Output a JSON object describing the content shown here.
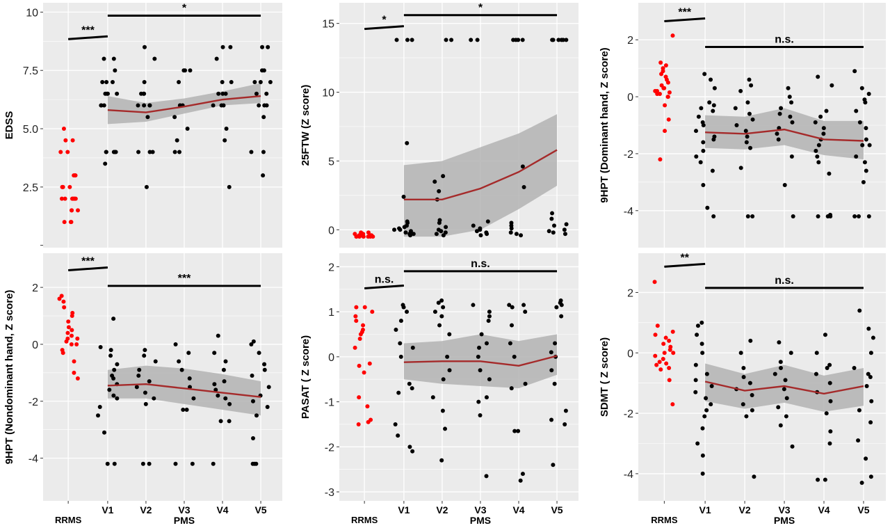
{
  "colors": {
    "panel_bg": "#ebebeb",
    "grid": "#ffffff",
    "rrms_points": "#ff0000",
    "pms_points": "#000000",
    "trend_line": "#a52a2a",
    "ribbon": "#b3b3b3",
    "bracket": "#000000"
  },
  "chart_data": [
    {
      "id": "edss",
      "type": "scatter",
      "ylabel": "EDSS",
      "xlabel": "PMS",
      "categories": [
        "RRMS",
        "V1",
        "V2",
        "V3",
        "V4",
        "V5"
      ],
      "yticks": [
        2.5,
        5.0,
        7.5,
        10
      ],
      "ytick_labels": [
        "2.5",
        "5.0",
        "7.5",
        "10"
      ],
      "extra_tick_marks": [
        0
      ],
      "ylim": [
        -0.1,
        10.4
      ],
      "trend": {
        "x": [
          "V1",
          "V2",
          "V3",
          "V4",
          "V5"
        ],
        "mean": [
          5.8,
          5.7,
          5.95,
          6.25,
          6.4
        ],
        "lower": [
          5.2,
          5.3,
          5.65,
          6.0,
          6.1
        ],
        "upper": [
          6.4,
          6.1,
          6.3,
          6.6,
          6.95
        ]
      },
      "brackets": [
        {
          "from": "RRMS",
          "to": "V1",
          "y": 8.9,
          "label": "***"
        },
        {
          "from": "V1",
          "to": "V5",
          "y": 9.85,
          "label": "*"
        }
      ],
      "points": {
        "RRMS": [
          1,
          1,
          1,
          1.5,
          1.5,
          1.5,
          2,
          2,
          2,
          2,
          2,
          2,
          2,
          2.5,
          2.5,
          2.5,
          2.5,
          3,
          3,
          3,
          4,
          4,
          4.5,
          4.5,
          5
        ],
        "V1": [
          3.5,
          4,
          4,
          4,
          4,
          4,
          6,
          6,
          6,
          6.5,
          6.5,
          6.5,
          6.5,
          7,
          7,
          7,
          7.5,
          8,
          8
        ],
        "V2": [
          2.5,
          4,
          4,
          4,
          5.5,
          6,
          6,
          6,
          6,
          6.5,
          6.5,
          6.5,
          7,
          8,
          8.5
        ],
        "V3": [
          4,
          4,
          4.5,
          5,
          5.5,
          6,
          6,
          6,
          7,
          7.5,
          7.5,
          7.5
        ],
        "V4": [
          2.5,
          4.5,
          5,
          6,
          6,
          6,
          6.5,
          6.5,
          6.5,
          7,
          7,
          8,
          8.5,
          8.5
        ],
        "V5": [
          3,
          4,
          4,
          5.5,
          6,
          6,
          6,
          6.5,
          6.5,
          7,
          7,
          7,
          7.5,
          7.5,
          8.5,
          8.5
        ]
      }
    },
    {
      "id": "25ftw",
      "type": "scatter",
      "ylabel": "25FTW (Z score)",
      "xlabel": "PMS",
      "categories": [
        "RRMS",
        "V1",
        "V2",
        "V3",
        "V4",
        "V5"
      ],
      "yticks": [
        0,
        5,
        10,
        15
      ],
      "ytick_labels": [
        "0",
        "5",
        "10",
        "15"
      ],
      "ylim": [
        -1.3,
        16.5
      ],
      "trend": {
        "x": [
          "V1",
          "V2",
          "V3",
          "V4",
          "V5"
        ],
        "mean": [
          2.2,
          2.2,
          3.0,
          4.2,
          5.8
        ],
        "lower": [
          -0.5,
          -0.5,
          0.0,
          1.5,
          3.2
        ],
        "upper": [
          4.7,
          5.0,
          6.0,
          7.0,
          8.4
        ]
      },
      "brackets": [
        {
          "from": "RRMS",
          "to": "V1",
          "y": 14.7,
          "label": "*"
        },
        {
          "from": "V1",
          "to": "V5",
          "y": 15.6,
          "label": "*"
        }
      ],
      "points": {
        "RRMS": [
          -0.5,
          -0.5,
          -0.5,
          -0.5,
          -0.5,
          -0.5,
          -0.5,
          -0.4,
          -0.4,
          -0.4,
          -0.4,
          -0.3,
          -0.3,
          -0.3,
          -0.2,
          -0.2
        ],
        "V1": [
          -0.4,
          -0.3,
          -0.3,
          -0.2,
          -0.1,
          0,
          0,
          0.1,
          0.2,
          0.3,
          0.5,
          0.6,
          2.4,
          6.3,
          13.8,
          13.8,
          13.8
        ],
        "V2": [
          -0.4,
          -0.3,
          -0.2,
          -0.1,
          0,
          0.2,
          0.5,
          0.7,
          2.2,
          2.8,
          3.5,
          3.9,
          13.8,
          13.8
        ],
        "V3": [
          -0.4,
          -0.3,
          -0.2,
          -0.1,
          0,
          0.1,
          0.3,
          0.6,
          13.8,
          13.8
        ],
        "V4": [
          -0.4,
          -0.3,
          -0.2,
          0.1,
          0.3,
          0.5,
          3.1,
          4.6,
          13.8,
          13.8,
          13.8,
          13.8
        ],
        "V5": [
          -0.3,
          -0.2,
          -0.1,
          0,
          0.3,
          0.4,
          0.8,
          1.2,
          13.8,
          13.8,
          13.8,
          13.8,
          13.8,
          13.8
        ]
      }
    },
    {
      "id": "9hpt-dominant",
      "type": "scatter",
      "ylabel": "9HPT (Dominant hand, Z score)",
      "xlabel": "PMS",
      "categories": [
        "RRMS",
        "V1",
        "V2",
        "V3",
        "V4",
        "V5"
      ],
      "yticks": [
        -4,
        -2,
        0,
        2
      ],
      "ytick_labels": [
        "-4",
        "-2",
        "0",
        "2"
      ],
      "ylim": [
        -5.3,
        3.3
      ],
      "trend": {
        "x": [
          "V1",
          "V2",
          "V3",
          "V4",
          "V5"
        ],
        "mean": [
          -1.25,
          -1.3,
          -1.15,
          -1.5,
          -1.55
        ],
        "lower": [
          -1.8,
          -1.85,
          -1.7,
          -2.05,
          -2.2
        ],
        "upper": [
          -0.65,
          -0.7,
          -0.4,
          -0.85,
          -0.85
        ]
      },
      "brackets": [
        {
          "from": "RRMS",
          "to": "V1",
          "y": 2.7,
          "label": "***"
        },
        {
          "from": "V1",
          "to": "V5",
          "y": 1.75,
          "label": "n.s."
        }
      ],
      "points": {
        "RRMS": [
          -2.2,
          -1.2,
          -0.8,
          -0.3,
          0,
          0,
          0.1,
          0.1,
          0.15,
          0.2,
          0.2,
          0.3,
          0.3,
          0.4,
          0.5,
          0.6,
          0.7,
          0.8,
          0.9,
          1.0,
          1.1,
          1.2,
          2.15
        ],
        "V1": [
          -4.2,
          -3.9,
          -3.1,
          -2.6,
          -2.3,
          -2.1,
          -1.9,
          -1.6,
          -1.5,
          -1.4,
          -1.2,
          -1.0,
          -0.9,
          -0.7,
          -0.5,
          -0.4,
          -0.3,
          -0.2,
          0.3,
          0.6,
          0.8
        ],
        "V2": [
          -4.2,
          -4.2,
          -2.5,
          -1.8,
          -1.6,
          -1.4,
          -1.2,
          -1.0,
          -0.8,
          -0.6,
          -0.4,
          -0.2,
          0.2,
          0.4,
          0.6
        ],
        "V3": [
          -4.2,
          -3.1,
          -2.1,
          -1.5,
          -1.3,
          -1.1,
          -0.9,
          -0.7,
          -0.6,
          -0.4,
          -0.2,
          0.0,
          0.3
        ],
        "V4": [
          -4.2,
          -4.2,
          -4.2,
          -4.15,
          -2.7,
          -2.3,
          -2.1,
          -1.9,
          -1.7,
          -1.5,
          -1.3,
          -1.1,
          -0.9,
          -0.7,
          -0.5,
          0.4,
          0.7
        ],
        "V5": [
          -4.2,
          -4.2,
          -4.2,
          -3.0,
          -2.6,
          -2.3,
          -2.1,
          -1.7,
          -1.7,
          -1.5,
          -1.1,
          -0.9,
          -0.5,
          -0.2,
          -0.1,
          0.1,
          0.3,
          0.9
        ]
      }
    },
    {
      "id": "9hpt-nondominant",
      "type": "scatter",
      "ylabel": "9HPT (Nondominant hand, Z score)",
      "xlabel": "PMS",
      "categories": [
        "RRMS",
        "V1",
        "V2",
        "V3",
        "V4",
        "V5"
      ],
      "yticks": [
        -4,
        -2,
        0,
        2
      ],
      "ytick_labels": [
        "-4",
        "-2",
        "0",
        "2"
      ],
      "ylim": [
        -5.5,
        3.2
      ],
      "trend": {
        "x": [
          "V1",
          "V2",
          "V3",
          "V4",
          "V5"
        ],
        "mean": [
          -1.45,
          -1.4,
          -1.55,
          -1.7,
          -1.85
        ],
        "lower": [
          -1.9,
          -1.9,
          -2.1,
          -2.3,
          -2.5
        ],
        "upper": [
          -0.9,
          -0.75,
          -0.85,
          -1.05,
          -1.3
        ]
      },
      "brackets": [
        {
          "from": "RRMS",
          "to": "V1",
          "y": 2.65,
          "label": "***"
        },
        {
          "from": "V1",
          "to": "V5",
          "y": 2.05,
          "label": "***"
        }
      ],
      "points": {
        "RRMS": [
          -1.2,
          -1.0,
          -0.6,
          -0.3,
          -0.2,
          0,
          0,
          0.1,
          0.2,
          0.2,
          0.3,
          0.4,
          0.5,
          0.6,
          0.8,
          1.0,
          1.1,
          1.3,
          1.5,
          1.6,
          1.7
        ],
        "V1": [
          -4.2,
          -4.2,
          -3.1,
          -2.5,
          -2.2,
          -1.9,
          -1.8,
          -1.6,
          -1.4,
          -1.2,
          -1.1,
          -0.9,
          -0.7,
          -0.4,
          -0.2,
          -0.1,
          0.9
        ],
        "V2": [
          -4.2,
          -4.2,
          -2.1,
          -1.9,
          -1.7,
          -1.5,
          -1.3,
          -1.1,
          -0.9,
          -0.6,
          -0.4,
          -0.2
        ],
        "V3": [
          -4.2,
          -4.2,
          -2.3,
          -2.3,
          -1.9,
          -1.5,
          -1.2,
          -0.9,
          -0.6,
          -0.3,
          0.0
        ],
        "V4": [
          -4.2,
          -2.7,
          -2.7,
          -2.1,
          -1.9,
          -1.8,
          -1.6,
          -1.4,
          -1.3,
          -0.9,
          -0.6,
          -0.3,
          0.3
        ],
        "V5": [
          -4.2,
          -4.2,
          -4.2,
          -3.3,
          -2.5,
          -2.2,
          -2.0,
          -1.8,
          -1.5,
          -1.1,
          -0.9,
          -0.7,
          -0.3,
          0.0,
          0.1
        ]
      }
    },
    {
      "id": "pasat",
      "type": "scatter",
      "ylabel": "PASAT ( Z score)",
      "xlabel": "PMS",
      "categories": [
        "RRMS",
        "V1",
        "V2",
        "V3",
        "V4",
        "V5"
      ],
      "yticks": [
        -3,
        -2,
        -1,
        0,
        1,
        2
      ],
      "ytick_labels": [
        "-3",
        "-2",
        "-1",
        "0",
        "1",
        "2"
      ],
      "ylim": [
        -3.2,
        2.3
      ],
      "trend": {
        "x": [
          "V1",
          "V2",
          "V3",
          "V4",
          "V5"
        ],
        "mean": [
          -0.12,
          -0.1,
          -0.1,
          -0.2,
          0.02
        ],
        "lower": [
          -0.5,
          -0.6,
          -0.65,
          -0.7,
          -0.4
        ],
        "upper": [
          0.3,
          0.35,
          0.5,
          0.35,
          0.5
        ]
      },
      "brackets": [
        {
          "from": "RRMS",
          "to": "V1",
          "y": 1.55,
          "label": "n.s."
        },
        {
          "from": "V1",
          "to": "V5",
          "y": 1.9,
          "label": "n.s."
        }
      ],
      "points": {
        "RRMS": [
          -1.5,
          -1.45,
          -1.4,
          -1.1,
          -0.9,
          -0.35,
          -0.2,
          -0.15,
          0.2,
          0.4,
          0.5,
          0.55,
          0.6,
          0.7,
          0.8,
          0.9,
          1.0,
          1.1,
          1.1
        ],
        "V1": [
          -2.1,
          -2.0,
          -1.75,
          -1.5,
          -0.8,
          -0.7,
          -0.6,
          0.0,
          0.2,
          0.3,
          0.6,
          0.8,
          1.0,
          1.1,
          1.15
        ],
        "V2": [
          -2.3,
          -1.6,
          -1.2,
          -0.9,
          -0.5,
          -0.3,
          0.0,
          0.5,
          0.7,
          0.9,
          1.0,
          1.1,
          1.2,
          1.25
        ],
        "V3": [
          -2.65,
          -1.3,
          -1.0,
          -0.9,
          -0.5,
          -0.3,
          0.0,
          0.2,
          0.3,
          0.5,
          0.8,
          0.9,
          1.0,
          1.15
        ],
        "V4": [
          -2.75,
          -2.6,
          -1.65,
          -1.65,
          -0.7,
          -0.6,
          0.0,
          0.3,
          0.7,
          1.0,
          1.1,
          1.15,
          1.15
        ],
        "V5": [
          -2.4,
          -1.5,
          -1.4,
          -1.2,
          -0.6,
          -0.3,
          0.0,
          0.1,
          0.3,
          0.9,
          1.1,
          1.15,
          1.2,
          1.25
        ]
      }
    },
    {
      "id": "sdmt",
      "type": "scatter",
      "ylabel": "SDMT ( Z score)",
      "xlabel": "PMS",
      "categories": [
        "RRMS",
        "V1",
        "V2",
        "V3",
        "V4",
        "V5"
      ],
      "yticks": [
        -4,
        -2,
        0,
        2
      ],
      "ytick_labels": [
        "-4",
        "-2",
        "0",
        "2"
      ],
      "ylim": [
        -4.9,
        3.3
      ],
      "trend": {
        "x": [
          "V1",
          "V2",
          "V3",
          "V4",
          "V5"
        ],
        "mean": [
          -0.95,
          -1.25,
          -1.1,
          -1.35,
          -1.1
        ],
        "lower": [
          -1.6,
          -1.85,
          -1.65,
          -1.95,
          -1.75
        ],
        "upper": [
          -0.35,
          -0.7,
          -0.4,
          -0.75,
          -0.5
        ]
      },
      "brackets": [
        {
          "from": "RRMS",
          "to": "V1",
          "y": 2.9,
          "label": "**"
        },
        {
          "from": "V1",
          "to": "V5",
          "y": 2.15,
          "label": "n.s."
        }
      ],
      "points": {
        "RRMS": [
          -1.7,
          -0.9,
          -0.55,
          -0.5,
          -0.4,
          -0.35,
          -0.3,
          -0.2,
          -0.1,
          0,
          0,
          0.1,
          0.2,
          0.3,
          0.4,
          0.5,
          0.6,
          0.7,
          0.9,
          2.35
        ],
        "V1": [
          -4.0,
          -3.4,
          -3.0,
          -2.5,
          -2.1,
          -1.9,
          -1.7,
          -1.5,
          -1.3,
          -1.1,
          -0.9,
          -0.7,
          -0.4,
          0.0,
          0.3,
          0.6,
          0.9,
          1.0
        ],
        "V2": [
          -4.1,
          -2.1,
          -1.9,
          -1.7,
          -1.4,
          -1.2,
          -1.0,
          -0.8,
          -0.5,
          0.0,
          0.4
        ],
        "V3": [
          -3.1,
          -2.4,
          -2.1,
          -1.8,
          -1.5,
          -1.2,
          -0.9,
          -0.7,
          -0.5,
          -0.3,
          0.0,
          0.35
        ],
        "V4": [
          -4.2,
          -4.2,
          -3.0,
          -2.6,
          -2.0,
          -1.6,
          -1.3,
          -1.0,
          -0.7,
          -0.5,
          -0.4,
          0.0,
          0.6
        ],
        "V5": [
          -4.3,
          -4.1,
          -3.5,
          -2.9,
          -2.3,
          -1.9,
          -1.6,
          -1.1,
          -0.8,
          -0.7,
          -0.5,
          0.0,
          0.5,
          0.8,
          1.4
        ]
      }
    }
  ]
}
